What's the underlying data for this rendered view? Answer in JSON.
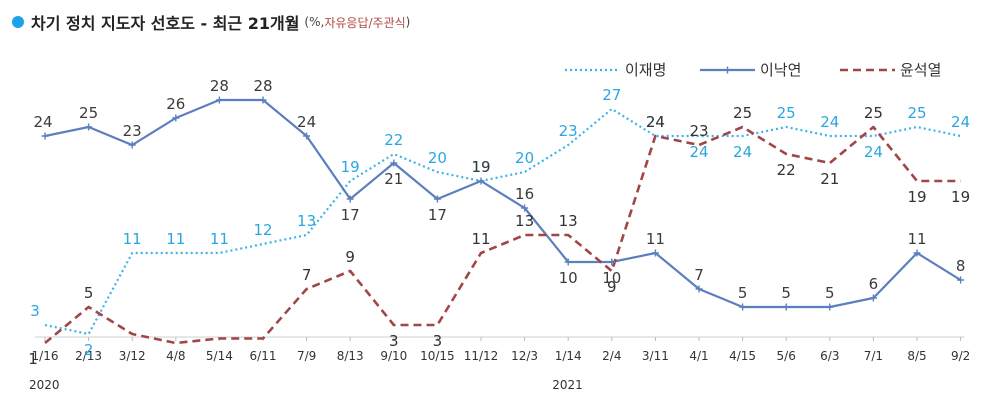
{
  "title": {
    "main": "차기 정치 지도자 선호도 - 최근 21개월",
    "unit": "(%,",
    "source": "자유응답/주관식",
    "close": ")"
  },
  "chart_data": {
    "type": "line",
    "title": "차기 정치 지도자 선호도 - 최근 21개월",
    "categories": [
      "1/16",
      "2/13",
      "3/12",
      "4/8",
      "5/14",
      "6/11",
      "7/9",
      "8/13",
      "9/10",
      "10/15",
      "11/12",
      "12/3",
      "1/14",
      "2/4",
      "3/11",
      "4/1",
      "4/15",
      "5/6",
      "6/3",
      "7/1",
      "8/5",
      "9/2"
    ],
    "year_labels": [
      {
        "index": 0,
        "text": "2020"
      },
      {
        "index": 12,
        "text": "2021"
      }
    ],
    "ylim": [
      0,
      30
    ],
    "grid": false,
    "legend_position": "top-right",
    "series": [
      {
        "name": "이재명",
        "color": "#3bb3e6",
        "style": "dotted",
        "values": [
          3,
          2,
          11,
          11,
          11,
          12,
          13,
          19,
          22,
          20,
          19,
          20,
          23,
          27,
          24,
          24,
          24,
          25,
          24,
          24,
          25,
          24
        ]
      },
      {
        "name": "이낙연",
        "color": "#5b7fbf",
        "style": "solid",
        "values": [
          24,
          25,
          23,
          26,
          28,
          28,
          24,
          17,
          21,
          17,
          19,
          16,
          10,
          10,
          11,
          7,
          5,
          5,
          5,
          6,
          11,
          8
        ]
      },
      {
        "name": "윤석열",
        "color": "#a14646",
        "style": "dashed",
        "values": [
          1,
          5,
          2,
          1,
          1.5,
          1.5,
          7,
          9,
          3,
          3,
          11,
          13,
          13,
          9,
          24,
          23,
          25,
          22,
          21,
          25,
          19,
          19
        ]
      }
    ]
  }
}
